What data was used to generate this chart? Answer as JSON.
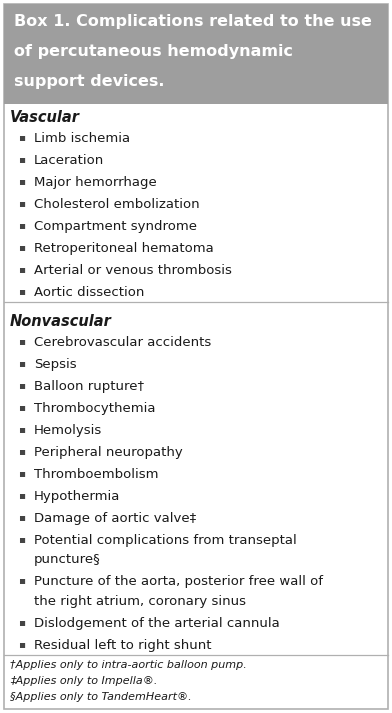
{
  "title_lines": [
    "Box 1. Complications related to the use",
    "of percutaneous hemodynamic",
    "support devices."
  ],
  "title_bg": "#9e9e9e",
  "title_color": "#ffffff",
  "box_bg": "#ffffff",
  "box_border": "#b0b0b0",
  "section1_header": "Vascular",
  "section1_items": [
    "Limb ischemia",
    "Laceration",
    "Major hemorrhage",
    "Cholesterol embolization",
    "Compartment syndrome",
    "Retroperitoneal hematoma",
    "Arterial or venous thrombosis",
    "Aortic dissection"
  ],
  "section2_header": "Nonvascular",
  "section2_items": [
    "Cerebrovascular accidents",
    "Sepsis",
    "Balloon rupture†",
    "Thrombocythemia",
    "Hemolysis",
    "Peripheral neuropathy",
    "Thromboembolism",
    "Hypothermia",
    "Damage of aortic valve‡",
    [
      "Potential complications from transeptal",
      "puncture§"
    ],
    [
      "Puncture of the aorta, posterior free wall of",
      "the right atrium, coronary sinus"
    ],
    "Dislodgement of the arterial cannula",
    "Residual left to right shunt"
  ],
  "footnotes": [
    "†Applies only to intra-aortic balloon pump.",
    "‡Applies only to Impella®.",
    "§Applies only to TandemHeart®."
  ],
  "figsize": [
    3.92,
    7.13
  ],
  "dpi": 100
}
